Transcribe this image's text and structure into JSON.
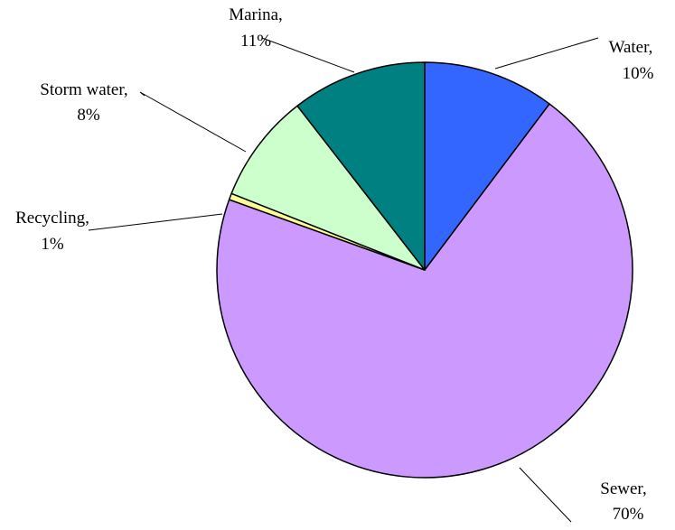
{
  "chart_data": {
    "type": "pie",
    "title": "",
    "start_angle": "12 o'clock",
    "direction": "clockwise",
    "slices": [
      {
        "label": "Water",
        "pct_label": "10%",
        "value": 10.25,
        "color": "#3366FF"
      },
      {
        "label": "Sewer",
        "pct_label": "70%",
        "value": 70.25,
        "color": "#CC99FF"
      },
      {
        "label": "Recycling",
        "pct_label": "1%",
        "value": 0.5,
        "color": "#FFFF99"
      },
      {
        "label": "Storm water",
        "pct_label": "8%",
        "value": 8.5,
        "color": "#CCFFCC"
      },
      {
        "label": "Marina",
        "pct_label": "11%",
        "value": 10.5,
        "color": "#008080"
      }
    ],
    "legend": "none",
    "border_color": "#000000"
  }
}
